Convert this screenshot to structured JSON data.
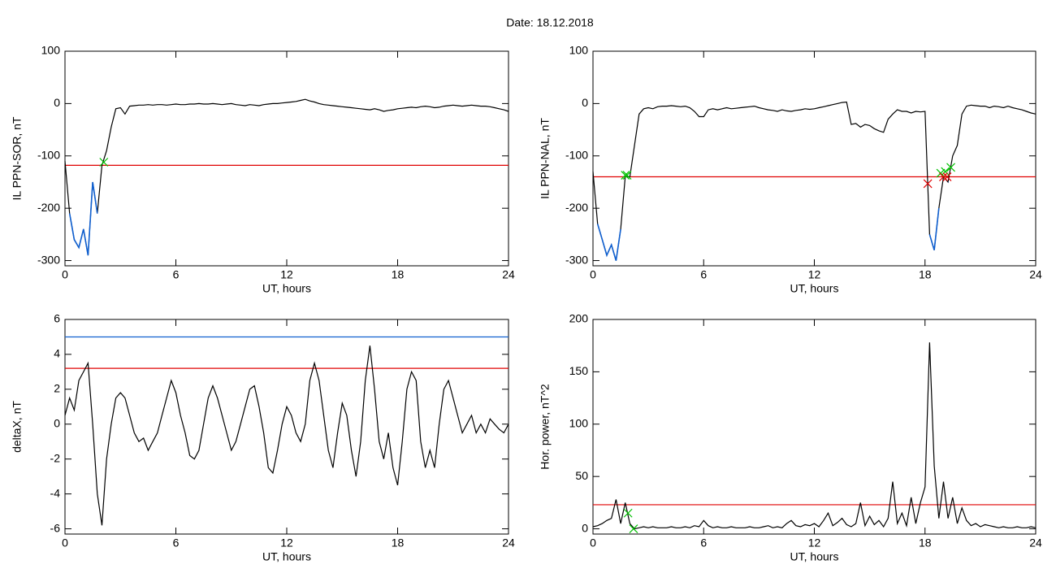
{
  "title": "Date:  18.12.2018",
  "chart_data": [
    {
      "type": "line",
      "ylabel": "IL PPN-SOR, nT",
      "xlabel": "UT, hours",
      "xlim": [
        0,
        24
      ],
      "xticks": [
        0,
        6,
        12,
        18,
        24
      ],
      "ylim": [
        -310,
        100
      ],
      "yticks": [
        -300,
        -200,
        -100,
        0,
        100
      ],
      "color": "#000000",
      "below_color": "#1060d0",
      "hlines": [
        {
          "value": -118,
          "color": "#e00000"
        }
      ],
      "markers": [
        {
          "x": 2.1,
          "y": -112,
          "color": "#00c000"
        }
      ],
      "x": [
        0,
        0.25,
        0.5,
        0.75,
        1,
        1.25,
        1.5,
        1.75,
        2,
        2.25,
        2.5,
        2.75,
        3,
        3.25,
        3.5,
        3.75,
        4,
        4.25,
        4.5,
        4.75,
        5,
        5.25,
        5.5,
        5.75,
        6,
        6.25,
        6.5,
        6.75,
        7,
        7.25,
        7.5,
        7.75,
        8,
        8.25,
        8.5,
        8.75,
        9,
        9.25,
        9.5,
        9.75,
        10,
        10.25,
        10.5,
        10.75,
        11,
        11.25,
        11.5,
        11.75,
        12,
        12.25,
        12.5,
        12.75,
        13,
        13.25,
        13.5,
        13.75,
        14,
        14.25,
        14.5,
        14.75,
        15,
        15.25,
        15.5,
        15.75,
        16,
        16.25,
        16.5,
        16.75,
        17,
        17.25,
        17.5,
        17.75,
        18,
        18.25,
        18.5,
        18.75,
        19,
        19.25,
        19.5,
        19.75,
        20,
        20.25,
        20.5,
        20.75,
        21,
        21.25,
        21.5,
        21.75,
        22,
        22.25,
        22.5,
        22.75,
        23,
        23.25,
        23.5,
        23.75,
        24
      ],
      "values": [
        -110,
        -210,
        -260,
        -275,
        -240,
        -290,
        -150,
        -210,
        -118,
        -90,
        -45,
        -10,
        -8,
        -20,
        -5,
        -4,
        -3,
        -3,
        -2,
        -3,
        -2,
        -2,
        -3,
        -2,
        -1,
        -2,
        -2,
        -1,
        -1,
        0,
        -1,
        -1,
        0,
        -1,
        -2,
        -1,
        0,
        -2,
        -3,
        -4,
        -2,
        -3,
        -4,
        -2,
        -1,
        0,
        0,
        1,
        2,
        3,
        4,
        6,
        8,
        5,
        3,
        0,
        -2,
        -3,
        -4,
        -5,
        -6,
        -7,
        -8,
        -9,
        -10,
        -11,
        -12,
        -10,
        -12,
        -15,
        -13,
        -12,
        -10,
        -9,
        -8,
        -7,
        -8,
        -6,
        -5,
        -6,
        -8,
        -7,
        -5,
        -4,
        -3,
        -4,
        -5,
        -4,
        -3,
        -4,
        -5,
        -5,
        -6,
        -8,
        -10,
        -12,
        -15
      ]
    },
    {
      "type": "line",
      "ylabel": "IL PPN-NAL, nT",
      "xlabel": "UT, hours",
      "xlim": [
        0,
        24
      ],
      "xticks": [
        0,
        6,
        12,
        18,
        24
      ],
      "ylim": [
        -310,
        100
      ],
      "yticks": [
        -300,
        -200,
        -100,
        0,
        100
      ],
      "color": "#000000",
      "below_color": "#1060d0",
      "hlines": [
        {
          "value": -140,
          "color": "#e00000"
        }
      ],
      "markers": [
        {
          "x": 1.75,
          "y": -137,
          "color": "#00c000"
        },
        {
          "x": 1.85,
          "y": -137,
          "color": "#00c000"
        },
        {
          "x": 18.85,
          "y": -133,
          "color": "#00c000"
        },
        {
          "x": 19.1,
          "y": -130,
          "color": "#00c000"
        },
        {
          "x": 19.4,
          "y": -122,
          "color": "#00c000"
        },
        {
          "x": 18.15,
          "y": -153,
          "color": "#e00000"
        },
        {
          "x": 19.0,
          "y": -140,
          "color": "#e00000"
        },
        {
          "x": 19.2,
          "y": -140,
          "color": "#e00000"
        }
      ],
      "x": [
        0,
        0.25,
        0.5,
        0.75,
        1,
        1.25,
        1.5,
        1.75,
        2,
        2.25,
        2.5,
        2.75,
        3,
        3.25,
        3.5,
        3.75,
        4,
        4.25,
        4.5,
        4.75,
        5,
        5.25,
        5.5,
        5.75,
        6,
        6.25,
        6.5,
        6.75,
        7,
        7.25,
        7.5,
        7.75,
        8,
        8.25,
        8.5,
        8.75,
        9,
        9.25,
        9.5,
        9.75,
        10,
        10.25,
        10.5,
        10.75,
        11,
        11.25,
        11.5,
        11.75,
        12,
        12.25,
        12.5,
        12.75,
        13,
        13.25,
        13.5,
        13.75,
        14,
        14.25,
        14.5,
        14.75,
        15,
        15.25,
        15.5,
        15.75,
        16,
        16.25,
        16.5,
        16.75,
        17,
        17.25,
        17.5,
        17.75,
        18,
        18.25,
        18.5,
        18.75,
        19,
        19.25,
        19.5,
        19.75,
        20,
        20.25,
        20.5,
        20.75,
        21,
        21.25,
        21.5,
        21.75,
        22,
        22.25,
        22.5,
        22.75,
        23,
        23.25,
        23.5,
        23.75,
        24
      ],
      "values": [
        -130,
        -230,
        -260,
        -290,
        -270,
        -300,
        -240,
        -140,
        -140,
        -80,
        -20,
        -10,
        -8,
        -10,
        -6,
        -5,
        -5,
        -4,
        -5,
        -6,
        -5,
        -8,
        -15,
        -25,
        -25,
        -12,
        -10,
        -12,
        -10,
        -8,
        -10,
        -9,
        -8,
        -7,
        -6,
        -5,
        -8,
        -10,
        -12,
        -13,
        -15,
        -12,
        -14,
        -15,
        -13,
        -12,
        -10,
        -11,
        -10,
        -8,
        -6,
        -4,
        -2,
        0,
        2,
        3,
        -40,
        -38,
        -45,
        -40,
        -42,
        -48,
        -52,
        -55,
        -30,
        -20,
        -12,
        -15,
        -15,
        -18,
        -15,
        -16,
        -15,
        -250,
        -280,
        -200,
        -140,
        -150,
        -100,
        -80,
        -20,
        -5,
        -3,
        -4,
        -5,
        -5,
        -8,
        -5,
        -6,
        -8,
        -5,
        -8,
        -10,
        -12,
        -15,
        -18,
        -20
      ]
    },
    {
      "type": "line",
      "ylabel": "deltaX, nT",
      "xlabel": "UT, hours",
      "xlim": [
        0,
        24
      ],
      "xticks": [
        0,
        6,
        12,
        18,
        24
      ],
      "ylim": [
        -6.3,
        6
      ],
      "yticks": [
        -6,
        -4,
        -2,
        0,
        2,
        4,
        6
      ],
      "color": "#000000",
      "hlines": [
        {
          "value": 3.2,
          "color": "#e00000"
        },
        {
          "value": 5.0,
          "color": "#1060d0"
        }
      ],
      "markers": [],
      "x": [
        0,
        0.25,
        0.5,
        0.75,
        1,
        1.25,
        1.5,
        1.75,
        2,
        2.25,
        2.5,
        2.75,
        3,
        3.25,
        3.5,
        3.75,
        4,
        4.25,
        4.5,
        4.75,
        5,
        5.25,
        5.5,
        5.75,
        6,
        6.25,
        6.5,
        6.75,
        7,
        7.25,
        7.5,
        7.75,
        8,
        8.25,
        8.5,
        8.75,
        9,
        9.25,
        9.5,
        9.75,
        10,
        10.25,
        10.5,
        10.75,
        11,
        11.25,
        11.5,
        11.75,
        12,
        12.25,
        12.5,
        12.75,
        13,
        13.25,
        13.5,
        13.75,
        14,
        14.25,
        14.5,
        14.75,
        15,
        15.25,
        15.5,
        15.75,
        16,
        16.25,
        16.5,
        16.75,
        17,
        17.25,
        17.5,
        17.75,
        18,
        18.25,
        18.5,
        18.75,
        19,
        19.25,
        19.5,
        19.75,
        20,
        20.25,
        20.5,
        20.75,
        21,
        21.25,
        21.5,
        21.75,
        22,
        22.25,
        22.5,
        22.75,
        23,
        23.25,
        23.5,
        23.75,
        24
      ],
      "values": [
        0.5,
        1.5,
        0.8,
        2.5,
        3,
        3.5,
        0,
        -4,
        -5.8,
        -2,
        0,
        1.5,
        1.8,
        1.5,
        0.5,
        -0.5,
        -1,
        -0.8,
        -1.5,
        -1,
        -0.5,
        0.5,
        1.5,
        2.5,
        1.8,
        0.5,
        -0.5,
        -1.8,
        -2,
        -1.5,
        0,
        1.5,
        2.2,
        1.5,
        0.5,
        -0.5,
        -1.5,
        -1,
        0,
        1,
        2,
        2.2,
        1,
        -0.5,
        -2.5,
        -2.8,
        -1.5,
        0,
        1,
        0.5,
        -0.5,
        -1,
        0,
        2.5,
        3.5,
        2.5,
        0.5,
        -1.5,
        -2.5,
        -0.5,
        1.2,
        0.5,
        -1.5,
        -3,
        -1,
        2.5,
        4.5,
        2,
        -1,
        -2,
        -0.5,
        -2.5,
        -3.5,
        -1,
        2,
        3,
        2.5,
        -1,
        -2.5,
        -1.5,
        -2.5,
        0,
        2,
        2.5,
        1.5,
        0.5,
        -0.5,
        0,
        0.5,
        -0.5,
        0,
        -0.5,
        0.3,
        0,
        -0.3,
        -0.5,
        0
      ]
    },
    {
      "type": "line",
      "ylabel": "Hor. power, nT^2",
      "xlabel": "UT, hours",
      "xlim": [
        0,
        24
      ],
      "xticks": [
        0,
        6,
        12,
        18,
        24
      ],
      "ylim": [
        -5,
        200
      ],
      "yticks": [
        0,
        50,
        100,
        150,
        200
      ],
      "color": "#000000",
      "hlines": [
        {
          "value": 23,
          "color": "#e00000"
        }
      ],
      "markers": [
        {
          "x": 1.9,
          "y": 15,
          "color": "#00c000"
        },
        {
          "x": 2.2,
          "y": 0,
          "color": "#00c000"
        }
      ],
      "x": [
        0,
        0.25,
        0.5,
        0.75,
        1,
        1.25,
        1.5,
        1.75,
        2,
        2.25,
        2.5,
        2.75,
        3,
        3.25,
        3.5,
        3.75,
        4,
        4.25,
        4.5,
        4.75,
        5,
        5.25,
        5.5,
        5.75,
        6,
        6.25,
        6.5,
        6.75,
        7,
        7.25,
        7.5,
        7.75,
        8,
        8.25,
        8.5,
        8.75,
        9,
        9.25,
        9.5,
        9.75,
        10,
        10.25,
        10.5,
        10.75,
        11,
        11.25,
        11.5,
        11.75,
        12,
        12.25,
        12.5,
        12.75,
        13,
        13.25,
        13.5,
        13.75,
        14,
        14.25,
        14.5,
        14.75,
        15,
        15.25,
        15.5,
        15.75,
        16,
        16.25,
        16.5,
        16.75,
        17,
        17.25,
        17.5,
        17.75,
        18,
        18.25,
        18.5,
        18.75,
        19,
        19.25,
        19.5,
        19.75,
        20,
        20.25,
        20.5,
        20.75,
        21,
        21.25,
        21.5,
        21.75,
        22,
        22.25,
        22.5,
        22.75,
        23,
        23.25,
        23.5,
        23.75,
        24
      ],
      "values": [
        2,
        3,
        5,
        8,
        10,
        28,
        5,
        25,
        5,
        0,
        1,
        2,
        1,
        2,
        1,
        1,
        1,
        2,
        1,
        1,
        2,
        1,
        3,
        2,
        8,
        3,
        1,
        2,
        1,
        1,
        2,
        1,
        1,
        1,
        2,
        1,
        1,
        2,
        3,
        1,
        2,
        1,
        5,
        8,
        3,
        2,
        4,
        3,
        5,
        2,
        8,
        15,
        3,
        6,
        10,
        4,
        2,
        5,
        25,
        3,
        12,
        4,
        8,
        2,
        10,
        45,
        5,
        15,
        3,
        30,
        5,
        25,
        40,
        178,
        60,
        10,
        45,
        10,
        30,
        5,
        20,
        8,
        3,
        5,
        2,
        4,
        3,
        2,
        1,
        2,
        1,
        1,
        2,
        1,
        1,
        2,
        1
      ]
    }
  ]
}
